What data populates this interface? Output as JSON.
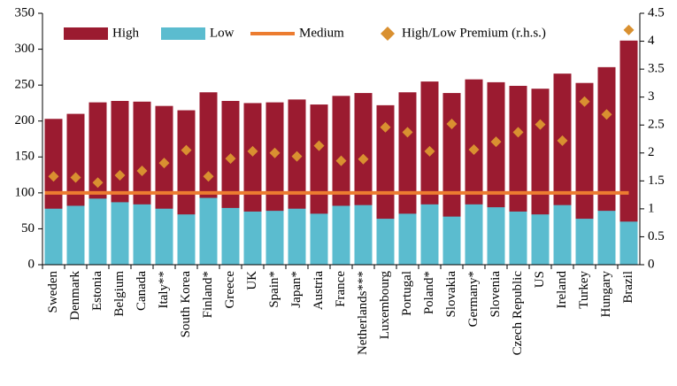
{
  "chart_data": {
    "type": "bar",
    "categories": [
      "Sweden",
      "Denmark",
      "Estonia",
      "Belgium",
      "Canada",
      "Italy**",
      "South Korea",
      "Finland*",
      "Greece",
      "UK",
      "Spain*",
      "Japan*",
      "Austria",
      "France",
      "Netherlands***",
      "Luxembourg",
      "Portugal",
      "Poland*",
      "Slovakia",
      "Germany*",
      "Slovenia",
      "Czech Republic",
      "US",
      "Ireland",
      "Turkey",
      "Hungary",
      "Brazil"
    ],
    "series": [
      {
        "name": "High",
        "type": "bar",
        "color": "#9b1b30",
        "values": [
          203,
          210,
          226,
          228,
          227,
          221,
          215,
          240,
          228,
          225,
          226,
          230,
          223,
          235,
          239,
          222,
          240,
          255,
          239,
          258,
          254,
          249,
          245,
          266,
          253,
          275,
          312
        ]
      },
      {
        "name": "Low",
        "type": "bar",
        "color": "#5bbccf",
        "values": [
          78,
          82,
          92,
          87,
          84,
          78,
          70,
          93,
          79,
          74,
          75,
          78,
          71,
          82,
          83,
          64,
          71,
          84,
          67,
          84,
          80,
          74,
          70,
          83,
          64,
          75,
          60
        ]
      },
      {
        "name": "Medium",
        "type": "line",
        "color": "#ec7c30",
        "values": [
          100,
          100,
          100,
          100,
          100,
          100,
          100,
          100,
          100,
          100,
          100,
          100,
          100,
          100,
          100,
          100,
          100,
          100,
          100,
          100,
          100,
          100,
          100,
          100,
          100,
          100,
          100
        ]
      },
      {
        "name": "High/Low Premium (r.h.s.)",
        "type": "scatter",
        "axis": "y2",
        "color": "#d99030",
        "values": [
          1.58,
          1.56,
          1.47,
          1.6,
          1.68,
          1.82,
          2.05,
          1.58,
          1.9,
          2.03,
          2.0,
          1.94,
          2.13,
          1.86,
          1.89,
          2.46,
          2.37,
          2.03,
          2.52,
          2.06,
          2.2,
          2.37,
          2.51,
          2.22,
          2.92,
          2.69,
          4.2
        ]
      }
    ],
    "ylim": [
      0,
      350
    ],
    "yticks": [
      0,
      50,
      100,
      150,
      200,
      250,
      300,
      350
    ],
    "y2lim": [
      0,
      4.5
    ],
    "y2ticks": [
      0,
      0.5,
      1,
      1.5,
      2,
      2.5,
      3,
      3.5,
      4,
      4.5
    ]
  }
}
